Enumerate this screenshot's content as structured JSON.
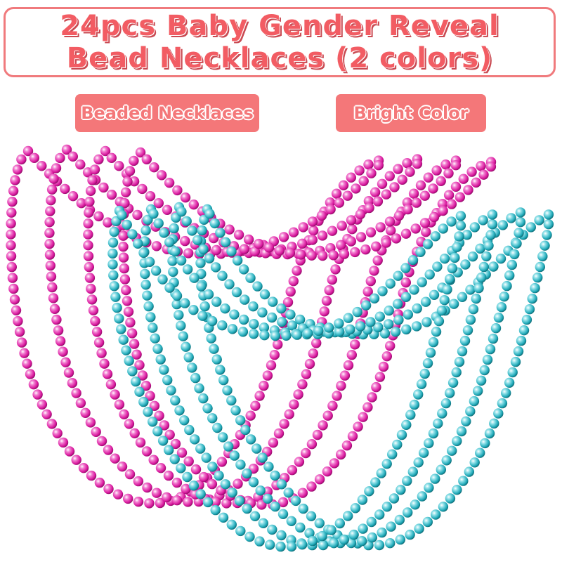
{
  "title": {
    "line1": "24pcs Baby Gender Reveal",
    "line2": "Bead Necklaces (2 colors)"
  },
  "tags": [
    "Beaded Necklaces",
    "Bright Color"
  ],
  "colors": {
    "accent": "#f47779",
    "title_text": "#f25c63",
    "pink_bead": "#d9189e",
    "teal_bead": "#1fa9b8"
  },
  "necklaces": [
    {
      "color": "pink",
      "count": 4
    },
    {
      "color": "teal",
      "count": 4
    }
  ]
}
